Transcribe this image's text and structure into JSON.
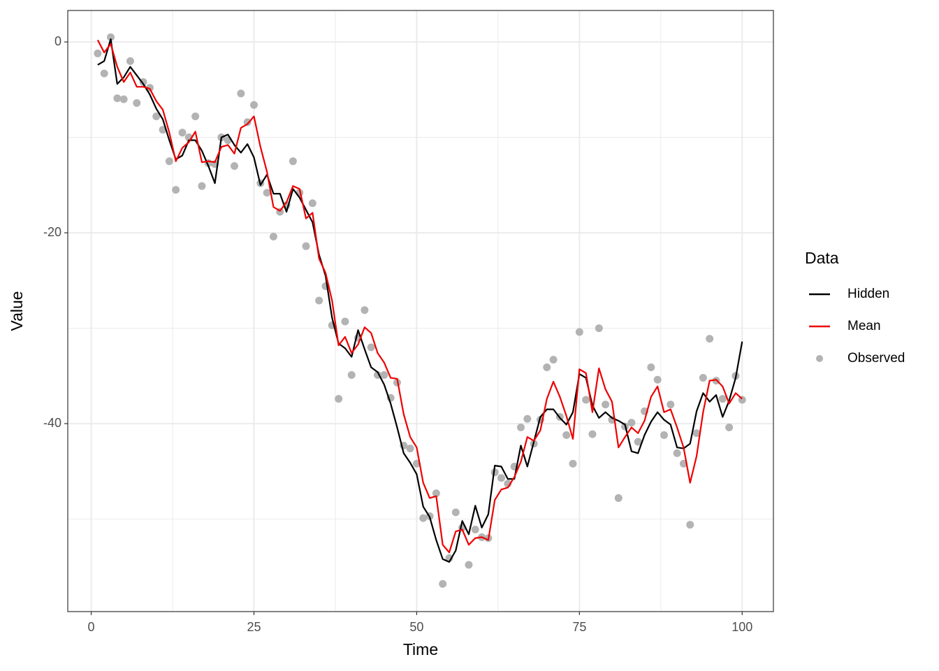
{
  "chart_data": {
    "type": "line",
    "x_label": "Time",
    "y_label": "Value",
    "legend_title": "Data",
    "xlim": [
      -3.6,
      104.8
    ],
    "ylim": [
      -59.7,
      3.3
    ],
    "xticks": [
      0,
      25,
      50,
      75,
      100
    ],
    "yticks": [
      0,
      -20,
      -40
    ],
    "grid": true,
    "minor_grid": true,
    "legend": "right",
    "x": [
      1,
      2,
      3,
      4,
      5,
      6,
      7,
      8,
      9,
      10,
      11,
      12,
      13,
      14,
      15,
      16,
      17,
      18,
      19,
      20,
      21,
      22,
      23,
      24,
      25,
      26,
      27,
      28,
      29,
      30,
      31,
      32,
      33,
      34,
      35,
      36,
      37,
      38,
      39,
      40,
      41,
      42,
      43,
      44,
      45,
      46,
      47,
      48,
      49,
      50,
      51,
      52,
      53,
      54,
      55,
      56,
      57,
      58,
      59,
      60,
      61,
      62,
      63,
      64,
      65,
      66,
      67,
      68,
      69,
      70,
      71,
      72,
      73,
      74,
      75,
      76,
      77,
      78,
      79,
      80,
      81,
      82,
      83,
      84,
      85,
      86,
      87,
      88,
      89,
      90,
      91,
      92,
      93,
      94,
      95,
      96,
      97,
      98,
      99,
      100
    ],
    "series": [
      {
        "name": "Hidden",
        "type": "line",
        "color": "#000000",
        "values": [
          -2.4,
          -2.0,
          0.3,
          -4.4,
          -3.7,
          -2.6,
          -3.5,
          -4.4,
          -5.5,
          -7.0,
          -8.1,
          -10.3,
          -12.3,
          -11.9,
          -10.3,
          -10.3,
          -11.4,
          -13.0,
          -14.8,
          -10.0,
          -9.7,
          -10.8,
          -11.6,
          -10.7,
          -12.1,
          -15.0,
          -13.9,
          -15.9,
          -15.9,
          -17.8,
          -15.4,
          -16.3,
          -17.6,
          -18.9,
          -22.3,
          -24.5,
          -28.9,
          -31.6,
          -32.1,
          -33.0,
          -30.2,
          -32.2,
          -34.1,
          -34.6,
          -35.9,
          -37.9,
          -40.4,
          -43.1,
          -44.1,
          -45.3,
          -48.7,
          -49.8,
          -52.2,
          -54.2,
          -54.5,
          -53.3,
          -50.2,
          -51.6,
          -48.6,
          -50.9,
          -49.5,
          -44.4,
          -44.5,
          -45.8,
          -45.8,
          -42.3,
          -44.5,
          -41.9,
          -39.3,
          -38.5,
          -38.5,
          -39.4,
          -40.1,
          -38.8,
          -34.8,
          -35.2,
          -38.1,
          -39.4,
          -38.8,
          -39.4,
          -39.7,
          -40.1,
          -42.9,
          -43.1,
          -41.2,
          -39.8,
          -38.8,
          -39.6,
          -40.1,
          -42.5,
          -42.6,
          -42.1,
          -38.7,
          -36.8,
          -37.7,
          -37.0,
          -39.3,
          -37.6,
          -35.2,
          -31.4
        ]
      },
      {
        "name": "Mean",
        "type": "line",
        "color": "#ee0000",
        "values": [
          0.2,
          -1.1,
          -0.2,
          -2.6,
          -4.2,
          -3.2,
          -4.7,
          -4.7,
          -4.9,
          -6.2,
          -7.1,
          -9.5,
          -12.5,
          -11.1,
          -10.5,
          -9.4,
          -12.6,
          -12.5,
          -12.6,
          -11.0,
          -10.8,
          -11.7,
          -9.0,
          -8.6,
          -7.8,
          -11.0,
          -13.6,
          -17.3,
          -17.7,
          -16.8,
          -15.1,
          -15.4,
          -18.5,
          -17.9,
          -22.7,
          -24.2,
          -27.1,
          -31.8,
          -30.9,
          -32.6,
          -31.7,
          -29.9,
          -30.5,
          -32.6,
          -33.6,
          -35.2,
          -35.3,
          -39.0,
          -41.4,
          -42.5,
          -46.2,
          -47.8,
          -47.6,
          -52.7,
          -53.5,
          -51.3,
          -51.1,
          -52.7,
          -52.0,
          -51.9,
          -52.2,
          -48.0,
          -46.9,
          -46.7,
          -45.6,
          -44.0,
          -41.4,
          -41.8,
          -40.7,
          -37.4,
          -35.6,
          -37.2,
          -39.2,
          -41.6,
          -34.3,
          -34.7,
          -38.8,
          -34.2,
          -36.4,
          -37.7,
          -42.5,
          -41.4,
          -40.4,
          -41.0,
          -39.7,
          -37.2,
          -36.1,
          -38.8,
          -38.5,
          -40.4,
          -42.5,
          -46.2,
          -43.4,
          -38.8,
          -35.5,
          -35.4,
          -36.1,
          -37.9,
          -36.8,
          -37.4
        ]
      },
      {
        "name": "Observed",
        "type": "scatter",
        "color": "#b3b3b3",
        "values": [
          -1.2,
          -3.3,
          0.5,
          -5.9,
          -6.0,
          -2.0,
          -6.4,
          -4.2,
          -4.8,
          -7.8,
          -9.2,
          -12.5,
          -15.5,
          -9.5,
          -10.0,
          -7.8,
          -15.1,
          -12.7,
          -12.8,
          -10.0,
          -10.3,
          -13.0,
          -5.4,
          -8.4,
          -6.6,
          -14.8,
          -15.8,
          -20.4,
          -17.8,
          -17.1,
          -12.5,
          -15.8,
          -21.4,
          -16.9,
          -27.1,
          -25.6,
          -29.7,
          -37.4,
          -29.3,
          -34.9,
          -31.0,
          -28.1,
          -32.0,
          -34.9,
          -34.9,
          -37.3,
          -35.7,
          -42.3,
          -42.6,
          -44.2,
          -49.9,
          -49.7,
          -47.3,
          -56.8,
          -54.1,
          -49.3,
          -50.9,
          -54.8,
          -51.1,
          -51.9,
          -52.0,
          -45.1,
          -45.7,
          -46.3,
          -44.5,
          -40.4,
          -39.5,
          -42.1,
          -39.6,
          -34.1,
          -33.3,
          -39.3,
          -41.2,
          -44.2,
          -30.4,
          -37.5,
          -41.1,
          -30.0,
          -38.0,
          -39.6,
          -47.8,
          -40.3,
          -39.9,
          -41.9,
          -38.7,
          -34.1,
          -35.4,
          -41.2,
          -38.0,
          -43.1,
          -44.2,
          -50.6,
          -41.0,
          -35.2,
          -31.1,
          -35.5,
          -37.4,
          -40.4,
          -35.0,
          -37.5
        ]
      }
    ]
  }
}
